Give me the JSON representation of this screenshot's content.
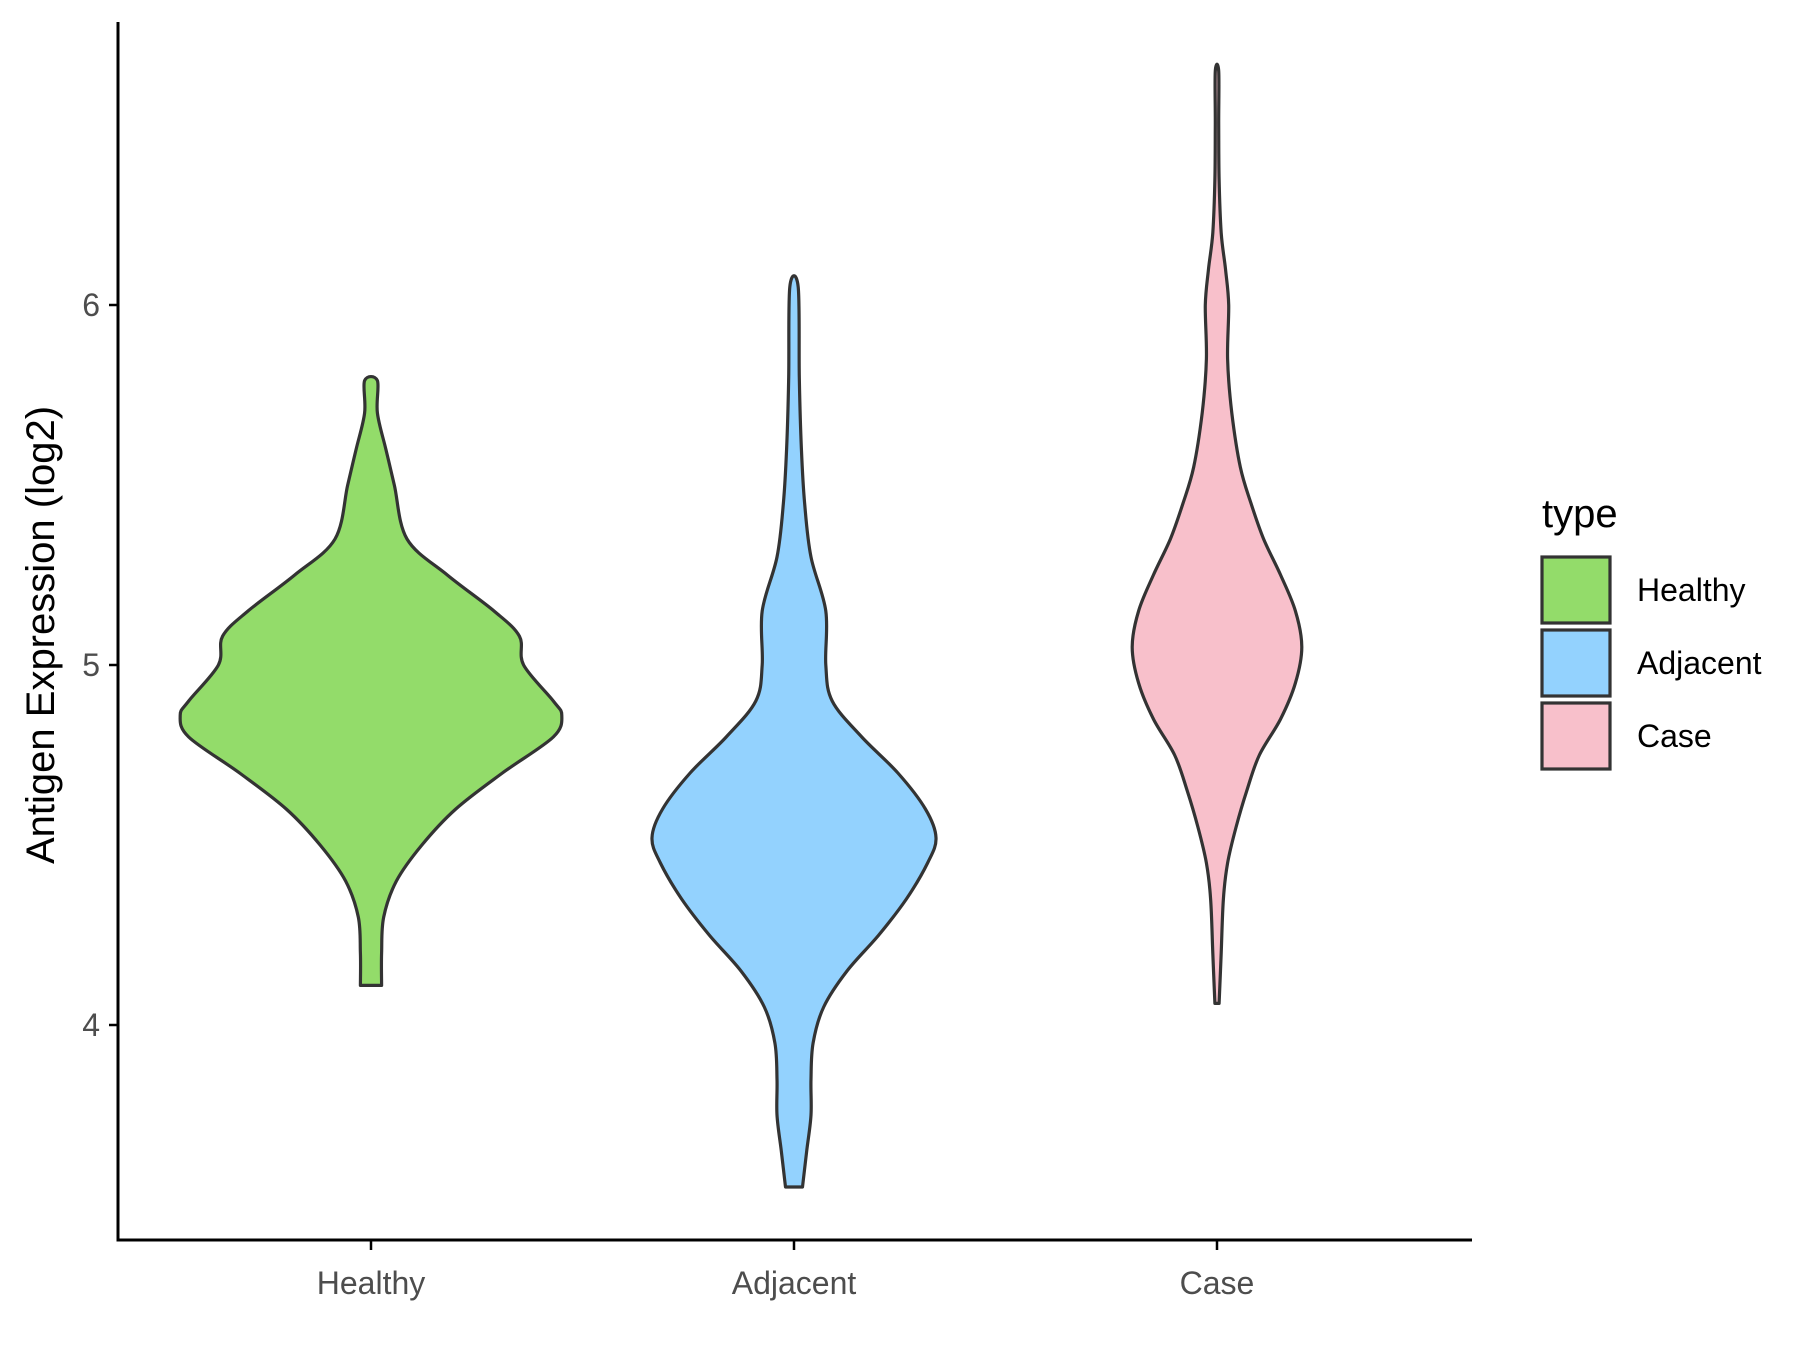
{
  "chart_data": {
    "type": "violin",
    "xlabel": "",
    "ylabel": "Antigen Expression (log2)",
    "ylim": [
      3.4,
      6.78
    ],
    "yticks": [
      4,
      5,
      6
    ],
    "categories": [
      "Healthy",
      "Adjacent",
      "Case"
    ],
    "colors": {
      "Healthy": "#93dc6a",
      "Adjacent": "#93d2fe",
      "Case": "#f8c0cb"
    },
    "legend": {
      "title": "type",
      "entries": [
        "Healthy",
        "Adjacent",
        "Case"
      ],
      "position": "right"
    },
    "grid": false,
    "series": [
      {
        "name": "Healthy",
        "min": 4.11,
        "max": 5.79,
        "profile": [
          [
            4.11,
            0.05
          ],
          [
            4.2,
            0.05
          ],
          [
            4.3,
            0.06
          ],
          [
            4.4,
            0.12
          ],
          [
            4.5,
            0.24
          ],
          [
            4.6,
            0.4
          ],
          [
            4.7,
            0.62
          ],
          [
            4.8,
            0.86
          ],
          [
            4.86,
            0.9
          ],
          [
            4.9,
            0.86
          ],
          [
            5.0,
            0.72
          ],
          [
            5.08,
            0.7
          ],
          [
            5.15,
            0.58
          ],
          [
            5.25,
            0.36
          ],
          [
            5.35,
            0.17
          ],
          [
            5.5,
            0.11
          ],
          [
            5.6,
            0.07
          ],
          [
            5.7,
            0.03
          ],
          [
            5.79,
            0.03
          ]
        ]
      },
      {
        "name": "Adjacent",
        "min": 3.55,
        "max": 6.05,
        "profile": [
          [
            3.55,
            0.04
          ],
          [
            3.65,
            0.06
          ],
          [
            3.75,
            0.08
          ],
          [
            3.85,
            0.08
          ],
          [
            3.95,
            0.09
          ],
          [
            4.05,
            0.14
          ],
          [
            4.15,
            0.25
          ],
          [
            4.25,
            0.4
          ],
          [
            4.35,
            0.53
          ],
          [
            4.45,
            0.63
          ],
          [
            4.52,
            0.67
          ],
          [
            4.6,
            0.62
          ],
          [
            4.7,
            0.49
          ],
          [
            4.8,
            0.32
          ],
          [
            4.9,
            0.18
          ],
          [
            5.0,
            0.15
          ],
          [
            5.15,
            0.15
          ],
          [
            5.3,
            0.08
          ],
          [
            5.45,
            0.05
          ],
          [
            5.6,
            0.035
          ],
          [
            5.8,
            0.025
          ],
          [
            6.05,
            0.02
          ]
        ]
      },
      {
        "name": "Case",
        "min": 4.06,
        "max": 6.65,
        "profile": [
          [
            4.06,
            0.01
          ],
          [
            4.2,
            0.02
          ],
          [
            4.35,
            0.03
          ],
          [
            4.45,
            0.05
          ],
          [
            4.55,
            0.09
          ],
          [
            4.65,
            0.14
          ],
          [
            4.75,
            0.2
          ],
          [
            4.85,
            0.3
          ],
          [
            4.95,
            0.37
          ],
          [
            5.05,
            0.4
          ],
          [
            5.15,
            0.37
          ],
          [
            5.25,
            0.3
          ],
          [
            5.35,
            0.22
          ],
          [
            5.45,
            0.16
          ],
          [
            5.55,
            0.11
          ],
          [
            5.7,
            0.07
          ],
          [
            5.85,
            0.05
          ],
          [
            6.0,
            0.055
          ],
          [
            6.1,
            0.04
          ],
          [
            6.2,
            0.02
          ],
          [
            6.35,
            0.01
          ],
          [
            6.5,
            0.008
          ],
          [
            6.65,
            0.008
          ]
        ]
      }
    ]
  }
}
